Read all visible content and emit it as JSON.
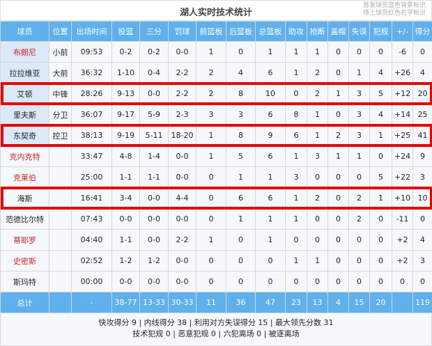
{
  "title": "湖人实时技术统计",
  "notes": [
    "首发球员蓝色背景标识",
    "场上球员红色名字标识"
  ],
  "colors": {
    "header": "#5fb0ec",
    "starter_bg": "#dbe9f8",
    "on_court_name": "#d0202a",
    "highlight_box": "#e60000"
  },
  "headers": [
    "球员",
    "位置",
    "出场时间",
    "投篮",
    "三分",
    "罚球",
    "前篮板",
    "后篮板",
    "总篮板",
    "助攻",
    "抢断",
    "盖帽",
    "失误",
    "犯规",
    "+/-",
    "得分"
  ],
  "rows": [
    {
      "cells": [
        "布朗尼",
        "小前",
        "09:53",
        "0-2",
        "0-2",
        "0-0",
        "1",
        "0",
        "1",
        "1",
        "1",
        "0",
        "0",
        "0",
        "-6",
        "0"
      ],
      "starter": true,
      "on_court": true,
      "highlighted": false
    },
    {
      "cells": [
        "拉拉维亚",
        "大前",
        "36:32",
        "1-10",
        "0-4",
        "2-2",
        "2",
        "4",
        "6",
        "1",
        "2",
        "0",
        "1",
        "4",
        "+26",
        "4"
      ],
      "starter": true,
      "on_court": false,
      "highlighted": false
    },
    {
      "cells": [
        "艾顿",
        "中锋",
        "28:26",
        "9-13",
        "0-0",
        "2-2",
        "2",
        "8",
        "10",
        "0",
        "2",
        "1",
        "3",
        "5",
        "+12",
        "20"
      ],
      "starter": true,
      "on_court": false,
      "highlighted": true
    },
    {
      "cells": [
        "里夫斯",
        "分卫",
        "36:07",
        "9-17",
        "5-9",
        "2-3",
        "3",
        "3",
        "6",
        "8",
        "1",
        "0",
        "3",
        "4",
        "+14",
        "25"
      ],
      "starter": true,
      "on_court": false,
      "highlighted": false
    },
    {
      "cells": [
        "东契奇",
        "控卫",
        "38:13",
        "9-19",
        "5-11",
        "18-20",
        "1",
        "8",
        "9",
        "6",
        "1",
        "2",
        "3",
        "1",
        "+25",
        "41"
      ],
      "starter": true,
      "on_court": false,
      "highlighted": true
    },
    {
      "cells": [
        "克内克特",
        "",
        "33:47",
        "4-8",
        "1-4",
        "0-0",
        "1",
        "5",
        "6",
        "1",
        "3",
        "1",
        "1",
        "0",
        "+24",
        "9"
      ],
      "starter": false,
      "on_court": true,
      "highlighted": false
    },
    {
      "cells": [
        "克莱伯",
        "",
        "25:00",
        "1-1",
        "1-1",
        "0-0",
        "0",
        "1",
        "1",
        "3",
        "0",
        "0",
        "0",
        "5",
        "+22",
        "3"
      ],
      "starter": false,
      "on_court": true,
      "highlighted": false
    },
    {
      "cells": [
        "海斯",
        "",
        "16:41",
        "3-4",
        "0-0",
        "4-4",
        "0",
        "6",
        "6",
        "1",
        "2",
        "0",
        "2",
        "1",
        "+10",
        "10"
      ],
      "starter": false,
      "on_court": false,
      "highlighted": true
    },
    {
      "cells": [
        "范德比尔特",
        "",
        "07:43",
        "0-0",
        "0-0",
        "0-0",
        "0",
        "1",
        "1",
        "1",
        "0",
        "0",
        "2",
        "0",
        "-11",
        "0"
      ],
      "starter": false,
      "on_court": false,
      "highlighted": false
    },
    {
      "cells": [
        "蒂耶罗",
        "",
        "04:40",
        "1-1",
        "0-0",
        "2-2",
        "1",
        "0",
        "1",
        "0",
        "0",
        "0",
        "0",
        "0",
        "+2",
        "4"
      ],
      "starter": false,
      "on_court": true,
      "highlighted": false
    },
    {
      "cells": [
        "史密斯",
        "",
        "02:52",
        "1-2",
        "1-2",
        "0-0",
        "0",
        "0",
        "0",
        "1",
        "1",
        "0",
        "0",
        "0",
        "+2",
        "3"
      ],
      "starter": false,
      "on_court": true,
      "highlighted": false
    },
    {
      "cells": [
        "斯玛特",
        "",
        "00:00",
        "0-0",
        "0-0",
        "0-0",
        "0",
        "0",
        "0",
        "0",
        "0",
        "0",
        "0",
        "0",
        "0",
        "0"
      ],
      "starter": false,
      "on_court": false,
      "highlighted": false
    }
  ],
  "totals": [
    "总计",
    "",
    "-",
    "38-77",
    "13-33",
    "30-33",
    "11",
    "36",
    "47",
    "23",
    "13",
    "4",
    "15",
    "20",
    "",
    "119"
  ],
  "footer": [
    "快攻得分 9 | 内线得分 38 | 利用对方失误得分 15 | 最大领先分数 31",
    "技术犯规 0 | 恶意犯规 0 | 六犯离场 0 | 被逐离场"
  ]
}
